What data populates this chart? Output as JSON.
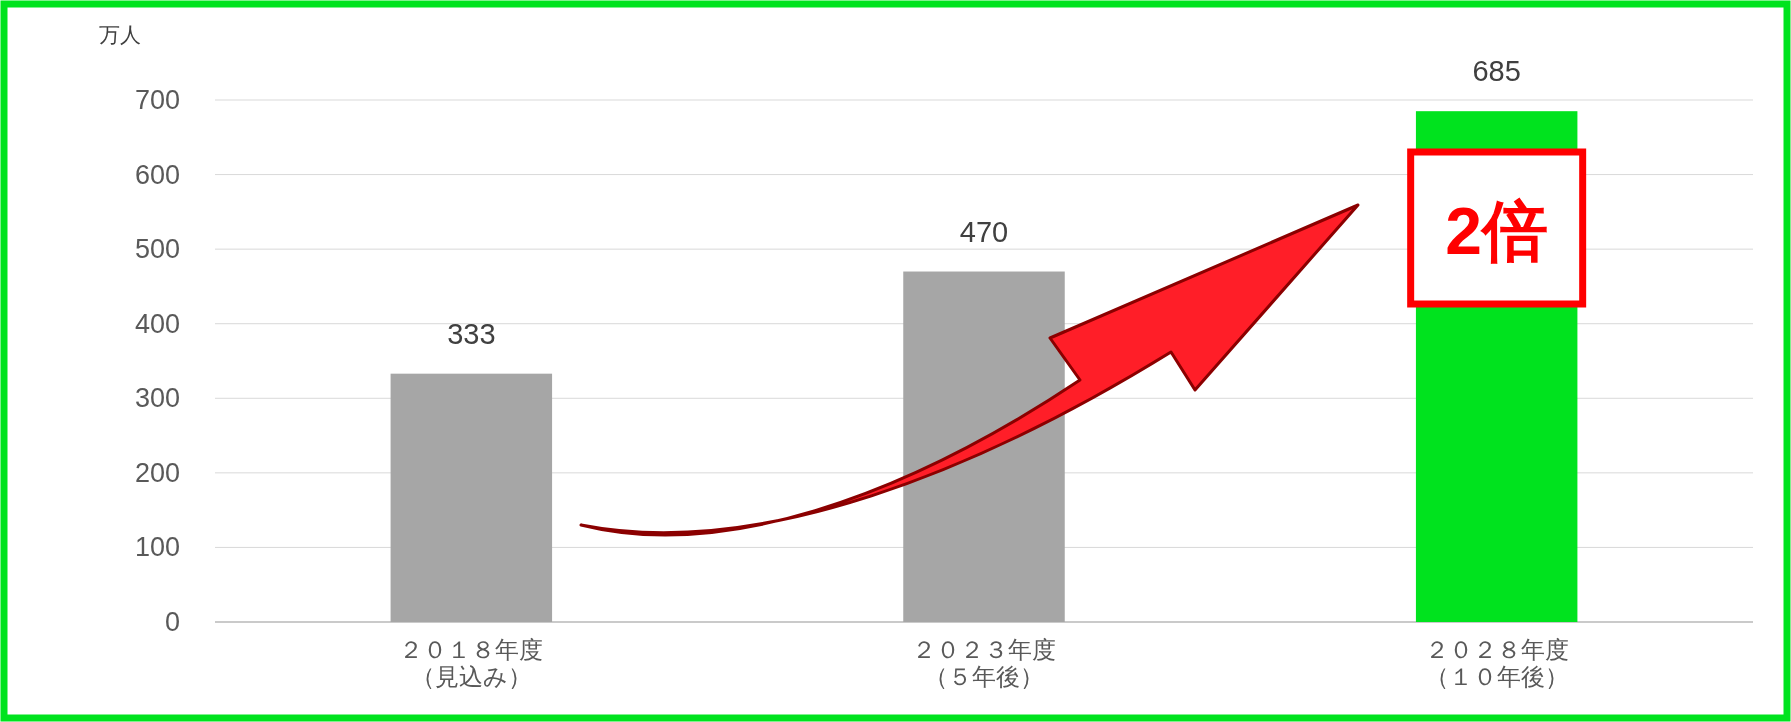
{
  "chart_data": {
    "type": "bar",
    "ylabel": "万人",
    "categories": [
      "２０１８年度（見込み）",
      "２０２３年度（５年後）",
      "２０２８年度（１０年後）"
    ],
    "values": [
      333,
      470,
      685
    ],
    "colors": [
      "#a6a6a6",
      "#a6a6a6",
      "#00e31e"
    ],
    "data_labels": true,
    "ylim": [
      0,
      700
    ],
    "yticks": [
      0,
      100,
      200,
      300,
      400,
      500,
      600,
      700
    ],
    "grid": "y",
    "annotations": [
      "2倍"
    ]
  }
}
